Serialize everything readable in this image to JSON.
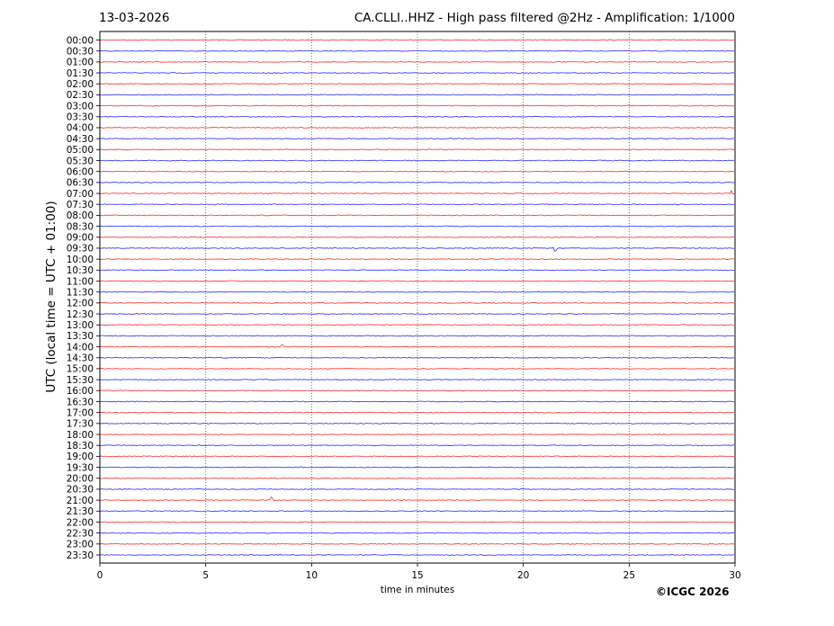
{
  "header": {
    "date": "13-03-2026",
    "title": "CA.CLLI..HHZ - High pass filtered @2Hz - Amplification: 1/1000"
  },
  "footer": {
    "copyright": "©ICGC 2026"
  },
  "chart_data": {
    "type": "line",
    "title": "CA.CLLI..HHZ - High pass filtered @2Hz - Amplification: 1/1000",
    "xlabel": "time in minutes",
    "ylabel": "UTC (local time = UTC + 01:00)",
    "xlim": [
      0,
      30
    ],
    "xticks": [
      0,
      5,
      10,
      15,
      20,
      25,
      30
    ],
    "grid": "vertical dotted at x ticks",
    "colors": [
      "#ff0000",
      "#0000ff"
    ],
    "rows": [
      "00:00",
      "00:30",
      "01:00",
      "01:30",
      "02:00",
      "02:30",
      "03:00",
      "03:30",
      "04:00",
      "04:30",
      "05:00",
      "05:30",
      "06:00",
      "06:30",
      "07:00",
      "07:30",
      "08:00",
      "08:30",
      "09:00",
      "09:30",
      "10:00",
      "10:30",
      "11:00",
      "11:30",
      "12:00",
      "12:30",
      "13:00",
      "13:30",
      "14:00",
      "14:30",
      "15:00",
      "15:30",
      "16:00",
      "16:30",
      "17:00",
      "17:30",
      "18:00",
      "18:30",
      "19:00",
      "19:30",
      "20:00",
      "20:30",
      "21:00",
      "21:30",
      "22:00",
      "22:30",
      "23:00",
      "23:30"
    ],
    "events": [
      {
        "row": "21:00",
        "minute": 8.1
      },
      {
        "row": "09:30",
        "minute": 21.5
      },
      {
        "row": "14:00",
        "minute": 8.6
      },
      {
        "row": "07:00",
        "minute": 29.8
      }
    ]
  }
}
